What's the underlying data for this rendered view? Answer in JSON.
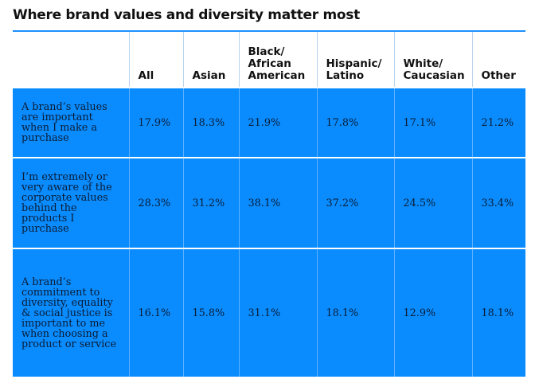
{
  "title": "Where brand values and diversity matter most",
  "chart_data": {
    "type": "table",
    "title": "Where brand values and diversity matter most",
    "columns": [
      "All",
      "Asian",
      "Black/\nAfrican\nAmerican",
      "Hispanic/\nLatino",
      "White/\nCaucasian",
      "Other"
    ],
    "rows": [
      {
        "label": "A brand’s values are important when I make a purchase",
        "values": [
          "17.9%",
          "18.3%",
          "21.9%",
          "17.8%",
          "17.1%",
          "21.2%"
        ]
      },
      {
        "label": "I’m extremely or very aware of the corporate values behind the products I purchase",
        "values": [
          "28.3%",
          "31.2%",
          "38.1%",
          "37.2%",
          "24.5%",
          "33.4%"
        ]
      },
      {
        "label": "A brand’s commitment to diversity, equality & social justice is important to me when choosing a product or service",
        "values": [
          "16.1%",
          "15.8%",
          "31.1%",
          "18.1%",
          "12.9%",
          "18.1%"
        ]
      }
    ]
  },
  "colors": {
    "accent": "#0a8cff",
    "rule": "#1e8fff"
  }
}
